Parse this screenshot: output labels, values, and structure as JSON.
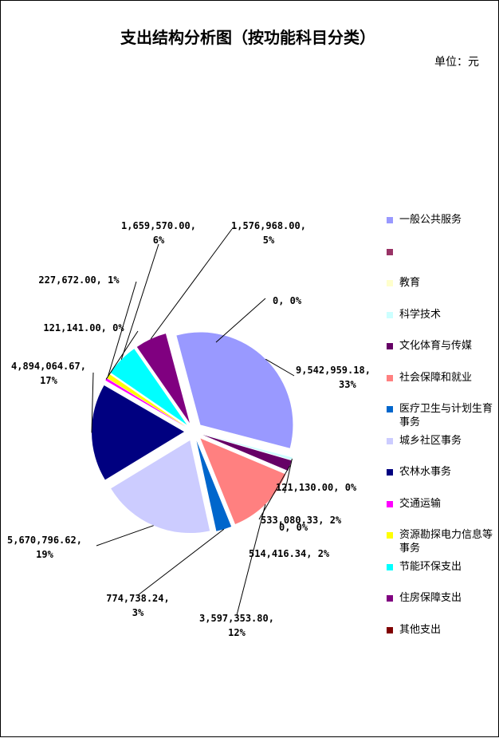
{
  "header": {
    "title": "支出结构分析图（按功能科目分类）",
    "unit": "单位：元"
  },
  "chart_data": {
    "type": "pie",
    "title": "支出结构分析图（按功能科目分类）",
    "unit": "单位：元",
    "legend_position": "right",
    "slices": [
      {
        "name": "一般公共服务",
        "value": 9542959.18,
        "label": "9,542,959.18,",
        "pct": "33%",
        "color": "#9999ff"
      },
      {
        "name": "",
        "value": 0,
        "label": "",
        "pct": "",
        "color": "#993366"
      },
      {
        "name": "教育",
        "value": 0,
        "label": "",
        "pct": "",
        "color": "#ffffcc"
      },
      {
        "name": "科学技术",
        "value": 121130.0,
        "label": "121,130.00,",
        "pct": "0%",
        "color": "#ccffff"
      },
      {
        "name": "文化体育与传媒",
        "value": 533080.33,
        "label": "533,080.33,",
        "pct": "2%",
        "color": "#660066"
      },
      {
        "name": "社会保障和就业",
        "value": 3597353.8,
        "label": "3,597,353.80,",
        "pct": "12%",
        "color": "#ff8080"
      },
      {
        "name": "医疗卫生与计划生育事务",
        "value": 774738.24,
        "label": "774,738.24,",
        "pct": "3%",
        "color": "#0066cc"
      },
      {
        "name": "城乡社区事务",
        "value": 5670796.62,
        "label": "5,670,796.62,",
        "pct": "19%",
        "color": "#ccccff"
      },
      {
        "name": "农林水事务",
        "value": 4894064.67,
        "label": "4,894,064.67,",
        "pct": "17%",
        "color": "#000080"
      },
      {
        "name": "交通运输",
        "value": 121141.0,
        "label": "121,141.00,",
        "pct": "0%",
        "color": "#ff00ff"
      },
      {
        "name": "资源勘探电力信息等事务",
        "value": 227672.0,
        "label": "227,672.00,",
        "pct": "1%",
        "color": "#ffff00"
      },
      {
        "name": "节能环保支出",
        "value": 1659570.0,
        "label": "1,659,570.00,",
        "pct": "6%",
        "color": "#00ffff"
      },
      {
        "name": "住房保障支出",
        "value": 1576968.0,
        "label": "1,576,968.00,",
        "pct": "5%",
        "color": "#800080"
      },
      {
        "name": "其他支出",
        "value": 0,
        "label": "",
        "pct": "",
        "color": "#800000"
      }
    ],
    "extra_labels": [
      {
        "text": "0,",
        "pct": "0%"
      },
      {
        "text": "0,",
        "pct": "0%"
      },
      {
        "text": "514,416.34,",
        "pct": "2%"
      }
    ]
  }
}
